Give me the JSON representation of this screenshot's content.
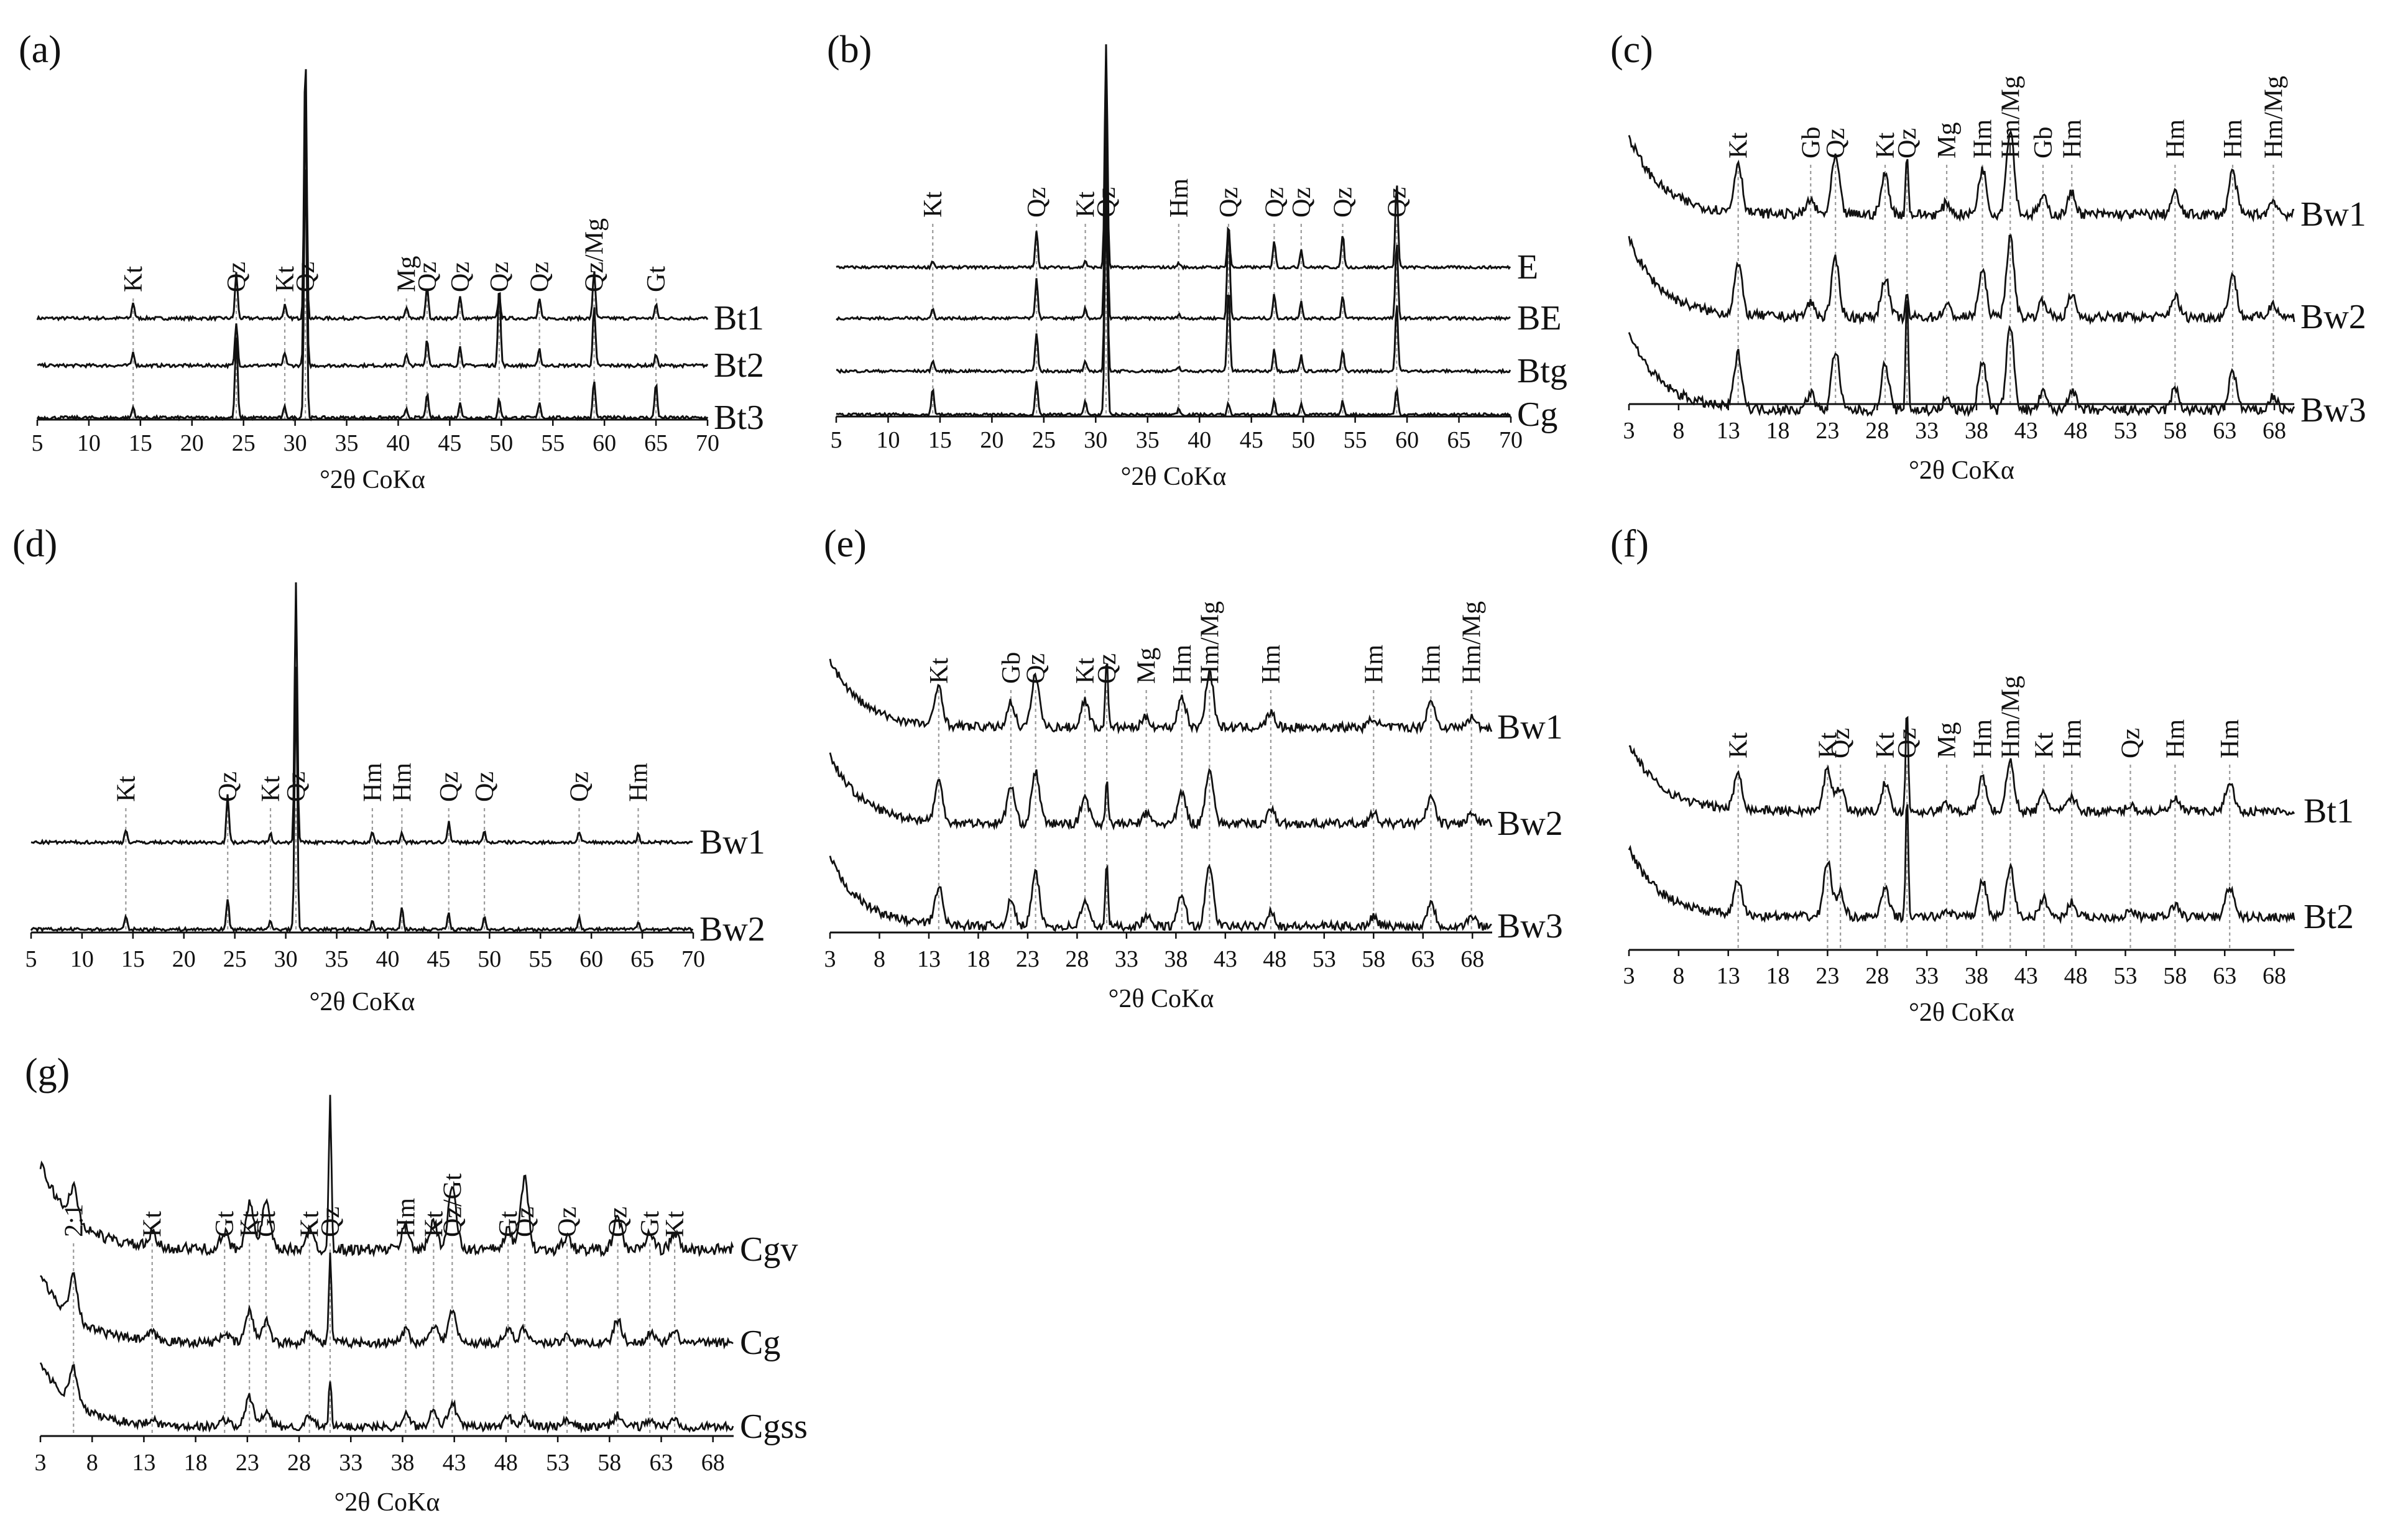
{
  "figure": {
    "xlabel": "°2θ CoKα",
    "color": "#111111",
    "marker_line_color": "#9a9a9a"
  },
  "chart_data": [
    {
      "panel": "(a)",
      "type": "line",
      "xlabel": "°2θ CoKα",
      "xlim": [
        5,
        70
      ],
      "xticks": [
        5,
        10,
        15,
        20,
        25,
        30,
        35,
        40,
        45,
        50,
        55,
        60,
        65,
        70
      ],
      "series_names": [
        "Bt1",
        "Bt2",
        "Bt3"
      ],
      "style": "sharp",
      "peaks": [
        {
          "pos": 14.3,
          "label": "Kt",
          "h": [
            0.06,
            0.05,
            0.04
          ]
        },
        {
          "pos": 24.3,
          "label": "Qz",
          "h": [
            0.17,
            0.16,
            0.3
          ]
        },
        {
          "pos": 29.0,
          "label": "Kt",
          "h": [
            0.05,
            0.05,
            0.04
          ]
        },
        {
          "pos": 31.0,
          "label": "Qz",
          "h": [
            1.0,
            1.0,
            1.0
          ]
        },
        {
          "pos": 40.8,
          "label": "Mg",
          "h": [
            0.04,
            0.04,
            0.03
          ]
        },
        {
          "pos": 42.8,
          "label": "Qz",
          "h": [
            0.12,
            0.1,
            0.09
          ]
        },
        {
          "pos": 46.0,
          "label": "Qz",
          "h": [
            0.08,
            0.07,
            0.06
          ]
        },
        {
          "pos": 49.8,
          "label": "Qz",
          "h": [
            0.08,
            0.3,
            0.07
          ]
        },
        {
          "pos": 53.7,
          "label": "Qz",
          "h": [
            0.07,
            0.06,
            0.06
          ]
        },
        {
          "pos": 59.0,
          "label": "Qz/Mg",
          "h": [
            0.18,
            0.22,
            0.14
          ]
        },
        {
          "pos": 65.0,
          "label": "Gt",
          "h": [
            0.05,
            0.04,
            0.13
          ]
        }
      ]
    },
    {
      "panel": "(b)",
      "type": "line",
      "xlabel": "°2θ CoKα",
      "xlim": [
        5,
        70
      ],
      "xticks": [
        5,
        10,
        15,
        20,
        25,
        30,
        35,
        40,
        45,
        50,
        55,
        60,
        65,
        70
      ],
      "series_names": [
        "E",
        "BE",
        "Btg",
        "Cg"
      ],
      "style": "sharp",
      "peaks": [
        {
          "pos": 14.3,
          "label": "Kt",
          "h": [
            0.03,
            0.04,
            0.05,
            0.12
          ]
        },
        {
          "pos": 24.3,
          "label": "Qz",
          "h": [
            0.16,
            0.17,
            0.17,
            0.15
          ]
        },
        {
          "pos": 29.0,
          "label": "Kt",
          "h": [
            0.03,
            0.04,
            0.04,
            0.06
          ]
        },
        {
          "pos": 31.0,
          "label": "Qz",
          "h": [
            1.0,
            1.0,
            1.0,
            1.0
          ]
        },
        {
          "pos": 38.0,
          "label": "Hm",
          "h": [
            0.02,
            0.02,
            0.02,
            0.03
          ]
        },
        {
          "pos": 42.8,
          "label": "Qz",
          "h": [
            0.18,
            0.42,
            0.38,
            0.05
          ]
        },
        {
          "pos": 47.2,
          "label": "Qz",
          "h": [
            0.12,
            0.1,
            0.1,
            0.06
          ]
        },
        {
          "pos": 49.8,
          "label": "Qz",
          "h": [
            0.08,
            0.07,
            0.07,
            0.05
          ]
        },
        {
          "pos": 53.8,
          "label": "Qz",
          "h": [
            0.15,
            0.1,
            0.09,
            0.06
          ]
        },
        {
          "pos": 59.0,
          "label": "Qz",
          "h": [
            0.38,
            0.32,
            0.3,
            0.12
          ]
        }
      ]
    },
    {
      "panel": "(c)",
      "type": "line",
      "xlabel": "°2θ CoKα",
      "xlim": [
        3,
        70
      ],
      "xticks": [
        3,
        8,
        13,
        18,
        23,
        28,
        33,
        38,
        43,
        48,
        53,
        58,
        63,
        68
      ],
      "series_names": [
        "Bw1",
        "Bw2",
        "Bw3"
      ],
      "style": "broad",
      "peaks": [
        {
          "pos": 14.0,
          "label": "Kt",
          "h": [
            0.35,
            0.35,
            0.38
          ]
        },
        {
          "pos": 21.3,
          "label": "Gb",
          "h": [
            0.1,
            0.1,
            0.12
          ]
        },
        {
          "pos": 23.8,
          "label": "Qz",
          "h": [
            0.4,
            0.4,
            0.42
          ]
        },
        {
          "pos": 28.8,
          "label": "Kt",
          "h": [
            0.28,
            0.28,
            0.32
          ]
        },
        {
          "pos": 31.0,
          "label": "Qz",
          "h": [
            0.45,
            0.15,
            0.85
          ]
        },
        {
          "pos": 35.0,
          "label": "Mg",
          "h": [
            0.08,
            0.08,
            0.08
          ]
        },
        {
          "pos": 38.6,
          "label": "Hm",
          "h": [
            0.32,
            0.32,
            0.35
          ]
        },
        {
          "pos": 41.4,
          "label": "Hm/Mg",
          "h": [
            0.6,
            0.55,
            0.58
          ]
        },
        {
          "pos": 44.7,
          "label": "Gb",
          "h": [
            0.12,
            0.12,
            0.12
          ]
        },
        {
          "pos": 47.6,
          "label": "Hm",
          "h": [
            0.15,
            0.15,
            0.15
          ]
        },
        {
          "pos": 58.0,
          "label": "Hm",
          "h": [
            0.15,
            0.15,
            0.15
          ]
        },
        {
          "pos": 63.8,
          "label": "Hm",
          "h": [
            0.3,
            0.3,
            0.28
          ]
        },
        {
          "pos": 67.9,
          "label": "Hm/Mg",
          "h": [
            0.1,
            0.1,
            0.1
          ]
        }
      ]
    },
    {
      "panel": "(d)",
      "type": "line",
      "xlabel": "°2θ CoKα",
      "xlim": [
        5,
        70
      ],
      "xticks": [
        5,
        10,
        15,
        20,
        25,
        30,
        35,
        40,
        45,
        50,
        55,
        60,
        65,
        70
      ],
      "series_names": [
        "Bw1",
        "Bw2"
      ],
      "style": "sharp",
      "peaks": [
        {
          "pos": 14.3,
          "label": "Kt",
          "h": [
            0.05,
            0.05
          ]
        },
        {
          "pos": 24.3,
          "label": "Qz",
          "h": [
            0.18,
            0.12
          ]
        },
        {
          "pos": 28.5,
          "label": "Kt",
          "h": [
            0.04,
            0.03
          ]
        },
        {
          "pos": 31.0,
          "label": "Qz",
          "h": [
            1.0,
            1.0
          ]
        },
        {
          "pos": 38.5,
          "label": "Hm",
          "h": [
            0.04,
            0.03
          ]
        },
        {
          "pos": 41.4,
          "label": "Hm",
          "h": [
            0.04,
            0.09
          ]
        },
        {
          "pos": 46.0,
          "label": "Qz",
          "h": [
            0.08,
            0.06
          ]
        },
        {
          "pos": 49.5,
          "label": "Qz",
          "h": [
            0.04,
            0.05
          ]
        },
        {
          "pos": 58.8,
          "label": "Qz",
          "h": [
            0.04,
            0.05
          ]
        },
        {
          "pos": 64.6,
          "label": "Hm",
          "h": [
            0.03,
            0.03
          ]
        }
      ]
    },
    {
      "panel": "(e)",
      "type": "line",
      "xlabel": "°2θ CoKα",
      "xlim": [
        3,
        70
      ],
      "xticks": [
        3,
        8,
        13,
        18,
        23,
        28,
        33,
        38,
        43,
        48,
        53,
        58,
        63,
        68
      ],
      "series_names": [
        "Bw1",
        "Bw2",
        "Bw3"
      ],
      "style": "broad",
      "peaks": [
        {
          "pos": 14.0,
          "label": "Kt",
          "h": [
            0.32,
            0.32,
            0.3
          ]
        },
        {
          "pos": 21.3,
          "label": "Gb",
          "h": [
            0.2,
            0.3,
            0.2
          ]
        },
        {
          "pos": 23.8,
          "label": "Qz",
          "h": [
            0.42,
            0.42,
            0.42
          ]
        },
        {
          "pos": 28.8,
          "label": "Kt",
          "h": [
            0.22,
            0.22,
            0.2
          ]
        },
        {
          "pos": 31.0,
          "label": "Qz",
          "h": [
            0.6,
            0.38,
            0.55
          ]
        },
        {
          "pos": 35.0,
          "label": "Mg",
          "h": [
            0.08,
            0.08,
            0.08
          ]
        },
        {
          "pos": 38.6,
          "label": "Hm",
          "h": [
            0.25,
            0.25,
            0.25
          ]
        },
        {
          "pos": 41.4,
          "label": "Hm/Mg",
          "h": [
            0.45,
            0.45,
            0.48
          ]
        },
        {
          "pos": 47.6,
          "label": "Hm",
          "h": [
            0.12,
            0.12,
            0.12
          ]
        },
        {
          "pos": 58.0,
          "label": "Hm",
          "h": [
            0.08,
            0.08,
            0.08
          ]
        },
        {
          "pos": 63.8,
          "label": "Hm",
          "h": [
            0.22,
            0.22,
            0.2
          ]
        },
        {
          "pos": 67.9,
          "label": "Hm/Mg",
          "h": [
            0.08,
            0.08,
            0.08
          ]
        }
      ]
    },
    {
      "panel": "(f)",
      "type": "line",
      "xlabel": "°2θ CoKα",
      "xlim": [
        3,
        70
      ],
      "xticks": [
        3,
        8,
        13,
        18,
        23,
        28,
        33,
        38,
        43,
        48,
        53,
        58,
        63,
        68
      ],
      "series_names": [
        "Bt1",
        "Bt2"
      ],
      "style": "broad",
      "peaks": [
        {
          "pos": 14.0,
          "label": "Kt",
          "h": [
            0.3,
            0.28
          ]
        },
        {
          "pos": 23.0,
          "label": "Kt",
          "h": [
            0.35,
            0.45
          ]
        },
        {
          "pos": 24.3,
          "label": "Qz",
          "h": [
            0.2,
            0.2
          ]
        },
        {
          "pos": 28.8,
          "label": "Kt",
          "h": [
            0.22,
            0.22
          ]
        },
        {
          "pos": 31.0,
          "label": "Qz",
          "h": [
            0.85,
            1.0
          ]
        },
        {
          "pos": 35.0,
          "label": "Mg",
          "h": [
            0.06,
            0.06
          ]
        },
        {
          "pos": 38.6,
          "label": "Hm",
          "h": [
            0.28,
            0.3
          ]
        },
        {
          "pos": 41.4,
          "label": "Hm/Mg",
          "h": [
            0.4,
            0.4
          ]
        },
        {
          "pos": 44.8,
          "label": "Kt",
          "h": [
            0.15,
            0.15
          ]
        },
        {
          "pos": 47.6,
          "label": "Hm",
          "h": [
            0.12,
            0.12
          ]
        },
        {
          "pos": 53.5,
          "label": "Qz",
          "h": [
            0.05,
            0.05
          ]
        },
        {
          "pos": 58.0,
          "label": "Hm",
          "h": [
            0.1,
            0.1
          ]
        },
        {
          "pos": 63.5,
          "label": "Hm",
          "h": [
            0.25,
            0.25
          ]
        }
      ]
    },
    {
      "panel": "(g)",
      "type": "line",
      "xlabel": "°2θ CoKα",
      "xlim": [
        3,
        70
      ],
      "xticks": [
        3,
        8,
        13,
        18,
        23,
        28,
        33,
        38,
        43,
        48,
        53,
        58,
        63,
        68
      ],
      "series_names": [
        "Cgv",
        "Cg",
        "Cgss"
      ],
      "style": "broad",
      "peaks": [
        {
          "pos": 6.2,
          "label": "2:1",
          "h": [
            0.2,
            0.35,
            0.3
          ]
        },
        {
          "pos": 13.8,
          "label": "Kt",
          "h": [
            0.08,
            0.06,
            0.05
          ]
        },
        {
          "pos": 20.8,
          "label": "Gt",
          "h": [
            0.1,
            0.08,
            0.06
          ]
        },
        {
          "pos": 23.2,
          "label": "Kt",
          "h": [
            0.3,
            0.25,
            0.25
          ]
        },
        {
          "pos": 24.8,
          "label": "Gt",
          "h": [
            0.3,
            0.18,
            0.12
          ]
        },
        {
          "pos": 29.0,
          "label": "Kt",
          "h": [
            0.12,
            0.1,
            0.08
          ]
        },
        {
          "pos": 31.0,
          "label": "Qz",
          "h": [
            1.0,
            0.7,
            0.4
          ]
        },
        {
          "pos": 38.3,
          "label": "Hm",
          "h": [
            0.15,
            0.1,
            0.1
          ]
        },
        {
          "pos": 41.0,
          "label": "Kt",
          "h": [
            0.18,
            0.15,
            0.15
          ]
        },
        {
          "pos": 42.8,
          "label": "Qz/Gt",
          "h": [
            0.4,
            0.25,
            0.2
          ]
        },
        {
          "pos": 48.2,
          "label": "Gt",
          "h": [
            0.12,
            0.1,
            0.08
          ]
        },
        {
          "pos": 49.8,
          "label": "Qz",
          "h": [
            0.45,
            0.12,
            0.08
          ]
        },
        {
          "pos": 53.9,
          "label": "Qz",
          "h": [
            0.08,
            0.06,
            0.05
          ]
        },
        {
          "pos": 58.8,
          "label": "Qz",
          "h": [
            0.2,
            0.18,
            0.1
          ]
        },
        {
          "pos": 61.9,
          "label": "Gt",
          "h": [
            0.1,
            0.08,
            0.06
          ]
        },
        {
          "pos": 64.3,
          "label": "Kt",
          "h": [
            0.1,
            0.08,
            0.06
          ]
        }
      ]
    }
  ]
}
